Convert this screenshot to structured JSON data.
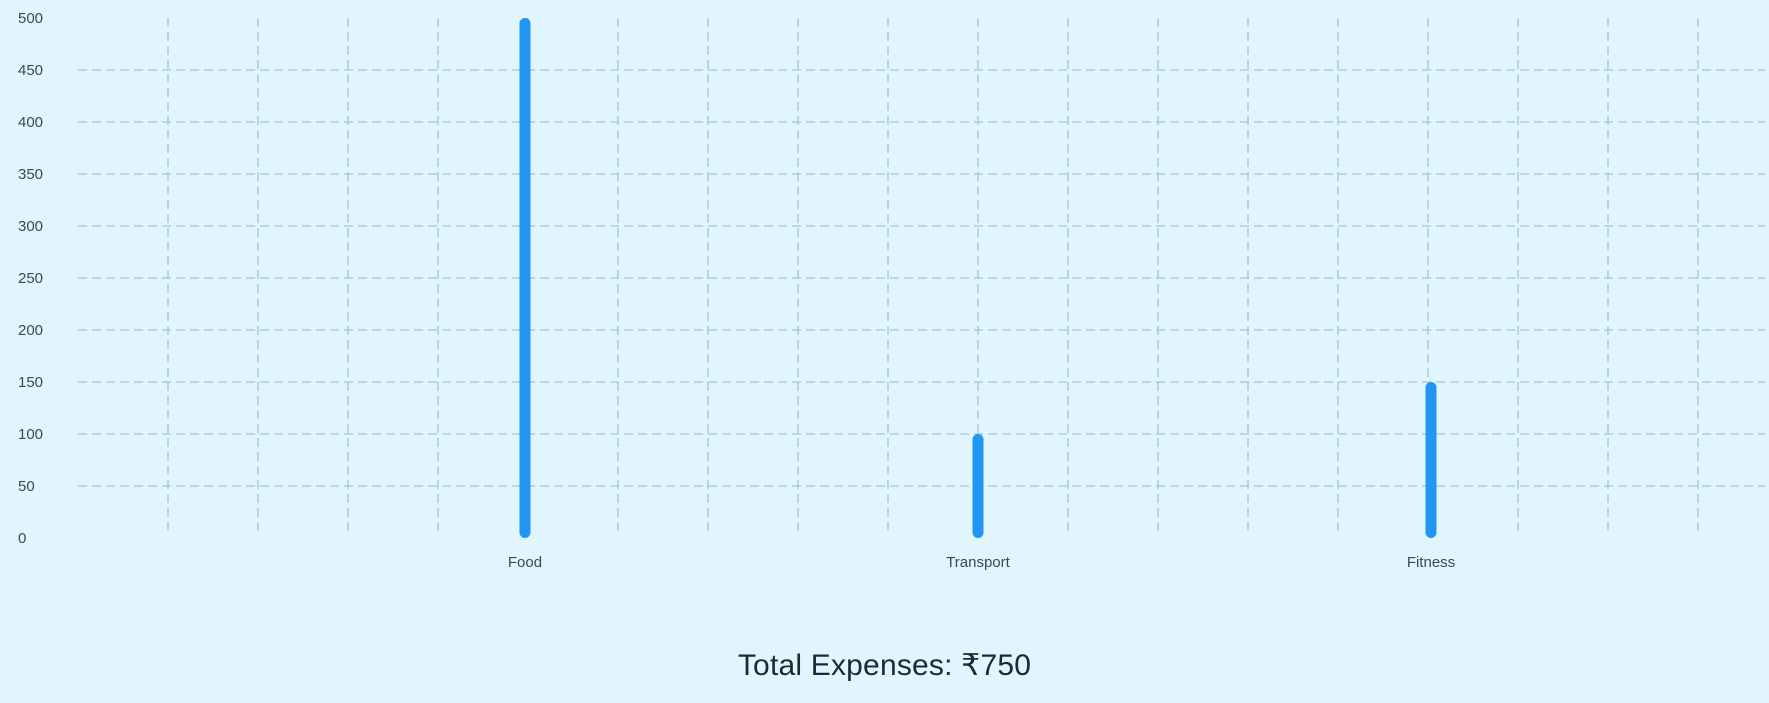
{
  "chart_data": {
    "type": "bar",
    "categories": [
      "Food",
      "Transport",
      "Fitness"
    ],
    "values": [
      500,
      100,
      150
    ],
    "ylim": [
      0,
      500
    ],
    "yticks": [
      0,
      50,
      100,
      150,
      200,
      250,
      300,
      350,
      400,
      450,
      500
    ],
    "grid": true,
    "bar_color": "#2196f3",
    "grid_color": "#a9c4cc"
  },
  "summary": {
    "total_label": "Total Expenses: ₹750"
  }
}
